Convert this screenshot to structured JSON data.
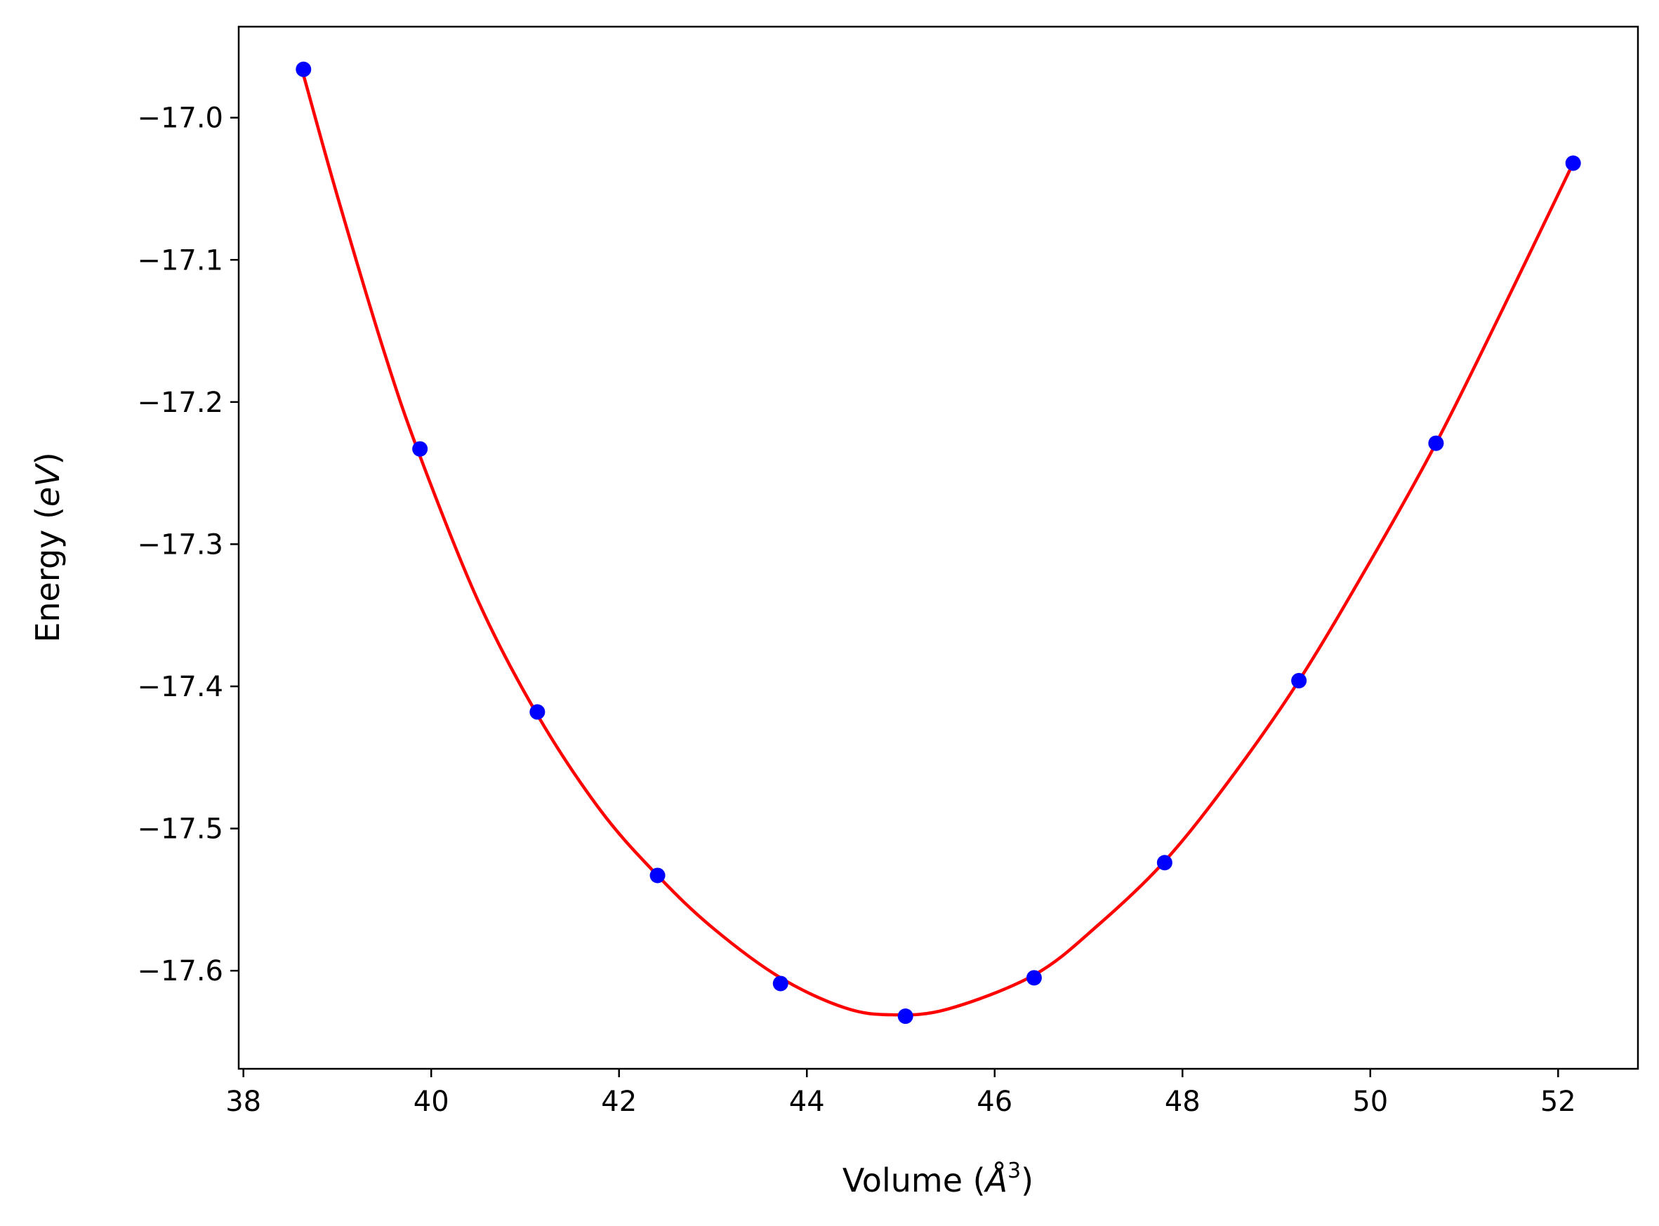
{
  "chart_data": {
    "type": "scatter",
    "xlabel": "Volume (Å³)",
    "xlabel_parts": {
      "prefix": "Volume (",
      "symbol": "Å",
      "exponent": "3",
      "suffix": ")"
    },
    "ylabel": "Energy (eV)",
    "ylabel_parts": {
      "prefix": "Energy (",
      "unit": "eV",
      "suffix": ")"
    },
    "xlim": [
      37.95,
      52.85
    ],
    "ylim": [
      -17.669,
      -16.936
    ],
    "xticks": [
      38,
      40,
      42,
      44,
      46,
      48,
      50,
      52
    ],
    "yticks": [
      -17.0,
      -17.1,
      -17.2,
      -17.3,
      -17.4,
      -17.5,
      -17.6
    ],
    "ytick_labels": [
      "−17.0",
      "−17.1",
      "−17.2",
      "−17.3",
      "−17.4",
      "−17.5",
      "−17.6"
    ],
    "grid": false,
    "legend": "none",
    "series": [
      {
        "kind": "points",
        "color": "#0000ff",
        "x": [
          38.64,
          39.88,
          41.13,
          42.41,
          43.72,
          45.05,
          46.42,
          47.81,
          49.24,
          50.7,
          52.16
        ],
        "y": [
          -16.966,
          -17.233,
          -17.418,
          -17.533,
          -17.609,
          -17.632,
          -17.605,
          -17.524,
          -17.396,
          -17.229,
          -17.032
        ]
      },
      {
        "kind": "fit-curve",
        "color": "#ff0000",
        "x": [
          38.64,
          39.0,
          39.5,
          39.88,
          40.5,
          41.13,
          41.8,
          42.41,
          43.0,
          43.72,
          44.4,
          44.9,
          45.5,
          46.42,
          47.1,
          47.81,
          48.5,
          49.24,
          50.0,
          50.7,
          51.4,
          52.16
        ],
        "y": [
          -16.97,
          -17.055,
          -17.165,
          -17.238,
          -17.34,
          -17.42,
          -17.487,
          -17.533,
          -17.57,
          -17.605,
          -17.626,
          -17.631,
          -17.627,
          -17.603,
          -17.568,
          -17.523,
          -17.466,
          -17.396,
          -17.312,
          -17.229,
          -17.136,
          -17.032
        ]
      }
    ]
  }
}
